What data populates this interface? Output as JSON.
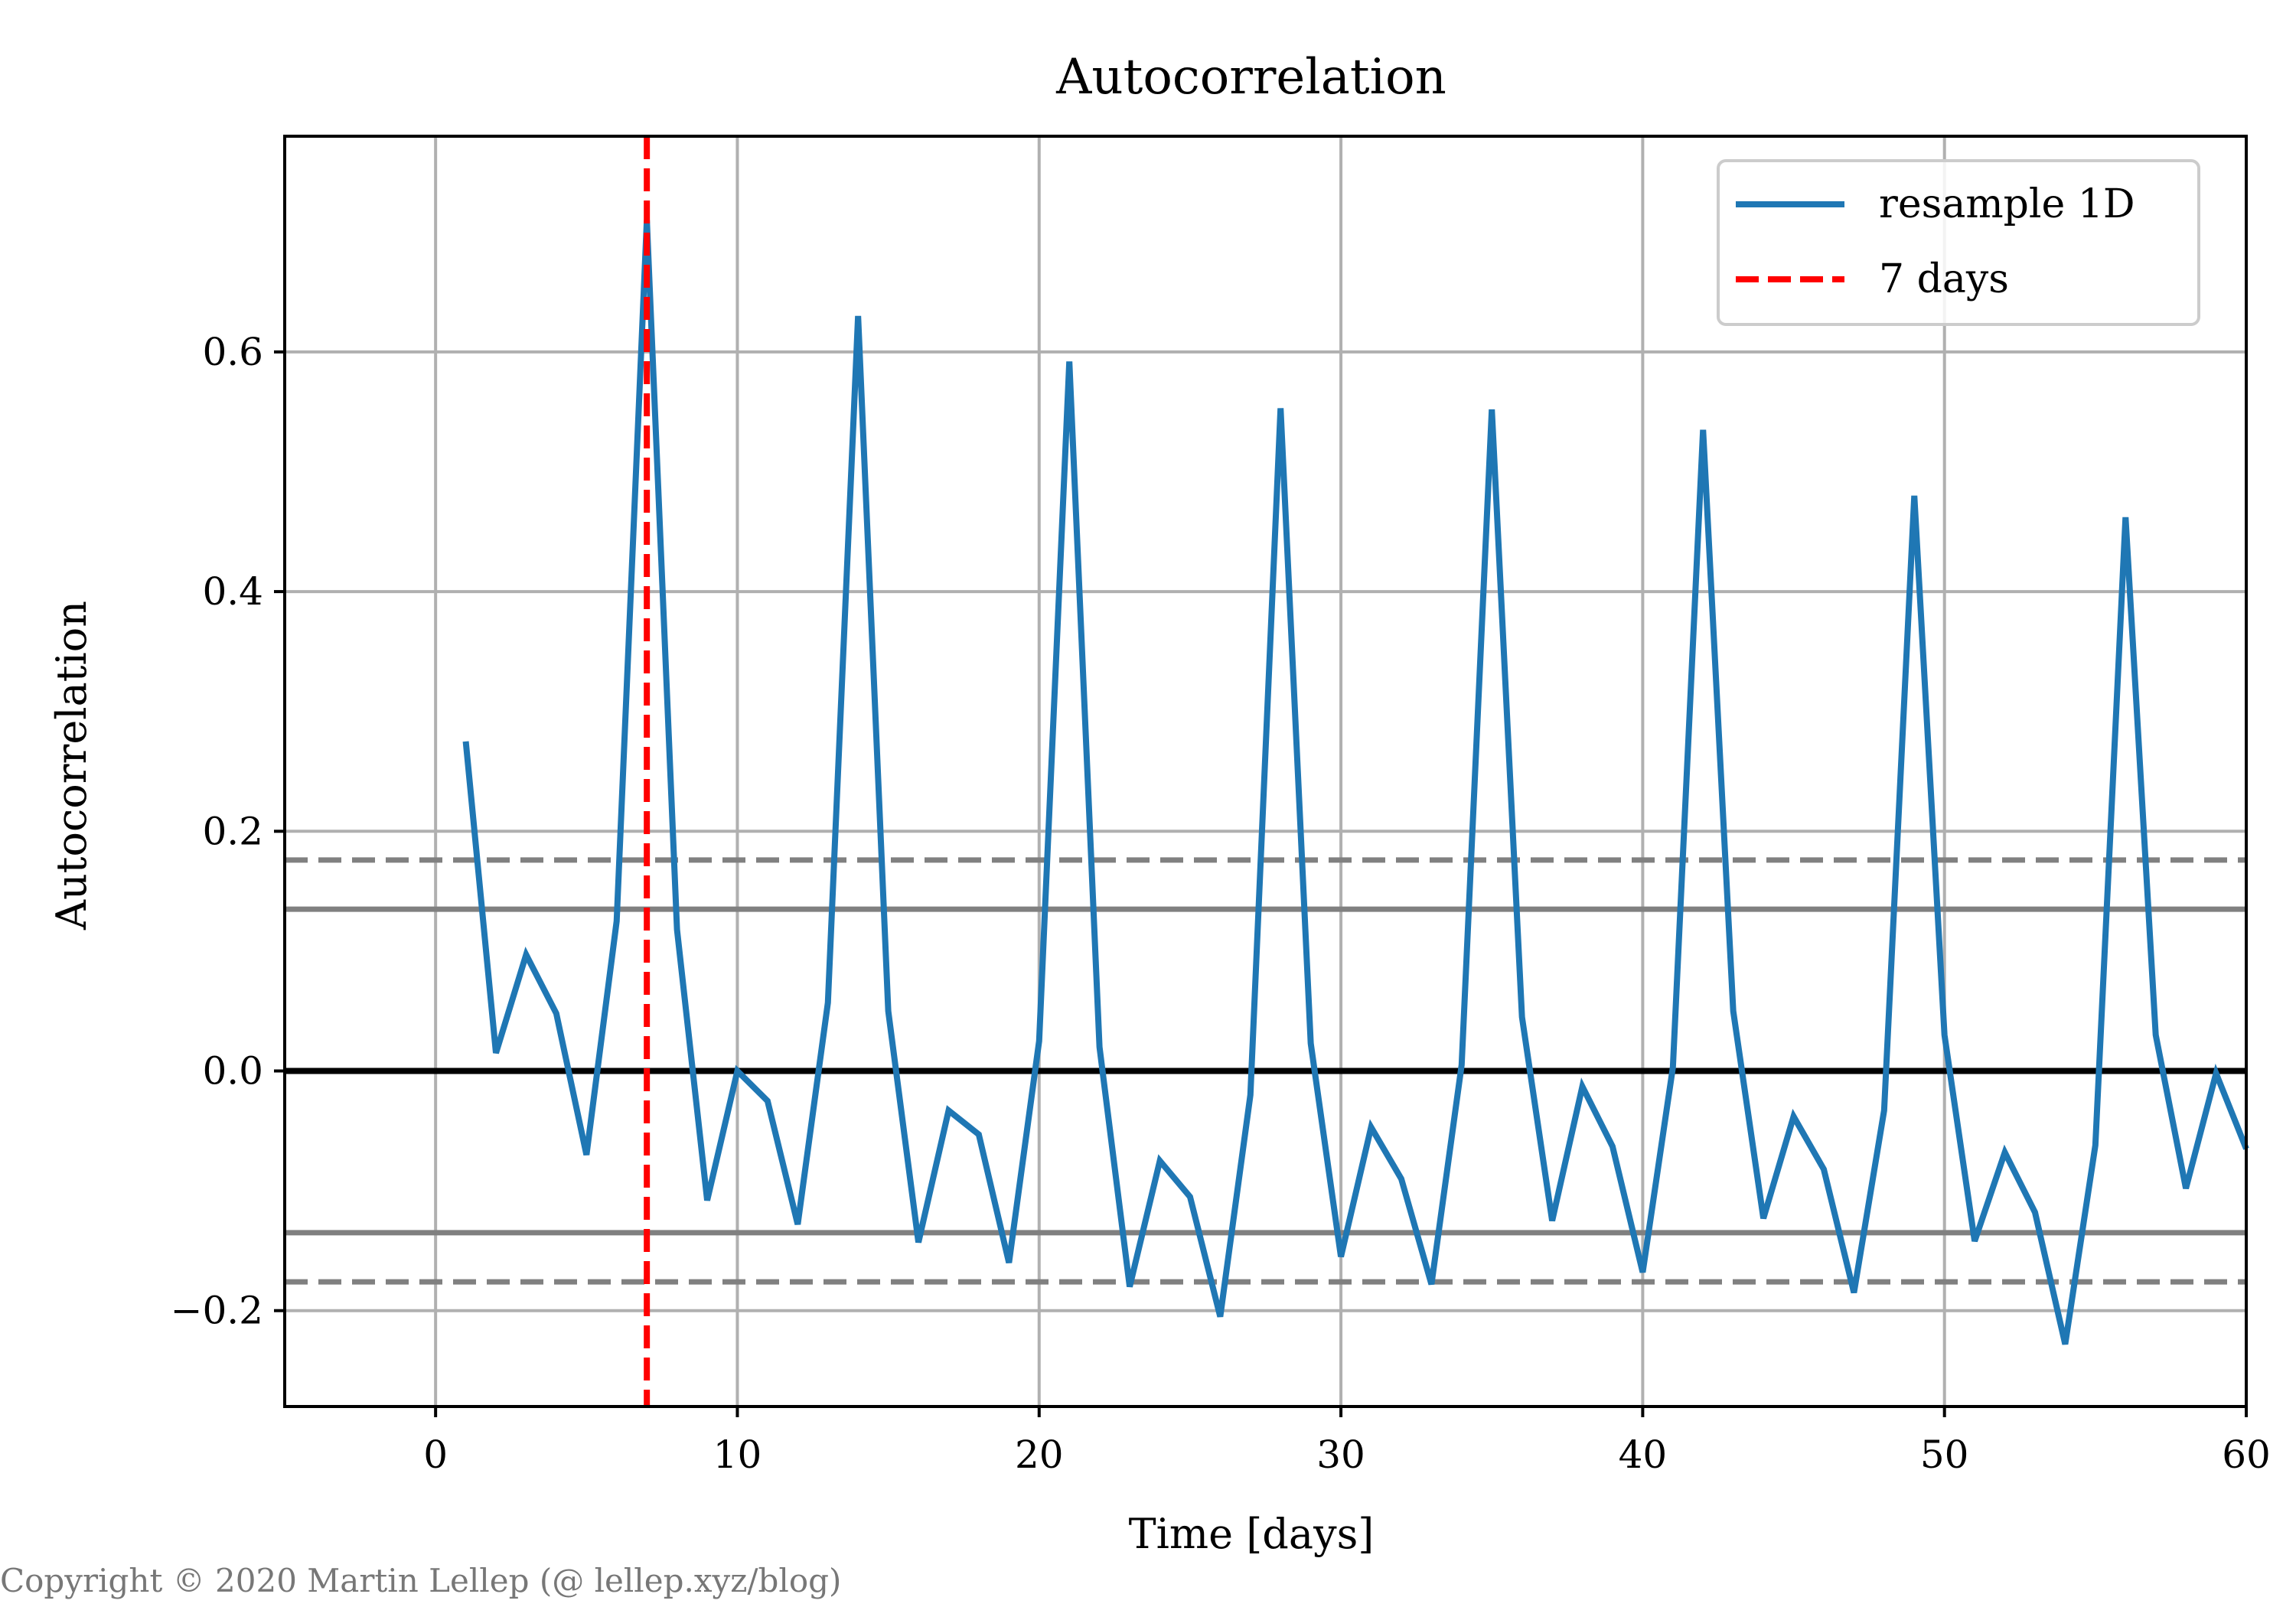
{
  "chart_data": {
    "type": "line",
    "title": "Autocorrelation",
    "xlabel": "Time [days]",
    "ylabel": "Autocorrelation",
    "xlim": [
      -5,
      60
    ],
    "ylim": [
      -0.28,
      0.78
    ],
    "xticks": [
      0,
      10,
      20,
      30,
      40,
      50,
      60
    ],
    "yticks": [
      -0.2,
      0.0,
      0.2,
      0.4,
      0.6
    ],
    "ytick_labels": [
      "−0.2",
      "0.0",
      "0.2",
      "0.4",
      "0.6"
    ],
    "grid": true,
    "legend_position": "top-right",
    "series": [
      {
        "name": "resample 1D",
        "color": "#1f77b4",
        "x": [
          1,
          2,
          3,
          4,
          5,
          6,
          7,
          8,
          9,
          10,
          11,
          12,
          13,
          14,
          15,
          16,
          17,
          18,
          19,
          20,
          21,
          22,
          23,
          24,
          25,
          26,
          27,
          28,
          29,
          30,
          31,
          32,
          33,
          34,
          35,
          36,
          37,
          38,
          39,
          40,
          41,
          42,
          43,
          44,
          45,
          46,
          47,
          48,
          49,
          50,
          51,
          52,
          53,
          54,
          55,
          56,
          57,
          58,
          59,
          60
        ],
        "y": [
          0.275,
          0.015,
          0.097,
          0.048,
          -0.07,
          0.125,
          0.71,
          0.118,
          -0.108,
          0.0,
          -0.025,
          -0.128,
          0.057,
          0.63,
          0.05,
          -0.143,
          -0.033,
          -0.053,
          -0.16,
          0.025,
          0.592,
          0.02,
          -0.18,
          -0.075,
          -0.105,
          -0.205,
          -0.02,
          0.553,
          0.023,
          -0.155,
          -0.047,
          -0.09,
          -0.178,
          0.005,
          0.552,
          0.045,
          -0.125,
          -0.013,
          -0.063,
          -0.168,
          0.003,
          0.535,
          0.05,
          -0.123,
          -0.038,
          -0.082,
          -0.185,
          -0.033,
          0.48,
          0.03,
          -0.142,
          -0.068,
          -0.118,
          -0.228,
          -0.062,
          0.462,
          0.03,
          -0.098,
          -0.002,
          -0.065
        ]
      }
    ],
    "reference_lines": [
      {
        "name": "7 days",
        "orientation": "vertical",
        "x": 7,
        "color": "#ff0000",
        "style": "dashed"
      },
      {
        "orientation": "horizontal",
        "y": 0.0,
        "color": "#000000",
        "style": "solid"
      },
      {
        "orientation": "horizontal",
        "y": 0.135,
        "color": "#808080",
        "style": "solid"
      },
      {
        "orientation": "horizontal",
        "y": -0.135,
        "color": "#808080",
        "style": "solid"
      },
      {
        "orientation": "horizontal",
        "y": 0.176,
        "color": "#808080",
        "style": "dashed"
      },
      {
        "orientation": "horizontal",
        "y": -0.176,
        "color": "#808080",
        "style": "dashed"
      }
    ]
  },
  "legend": {
    "items": [
      {
        "label": "resample 1D",
        "color": "#1f77b4",
        "style": "solid"
      },
      {
        "label": "7 days",
        "color": "#ff0000",
        "style": "dashed"
      }
    ]
  },
  "footer": {
    "copyright": "Copyright © 2020 Martin Lellep (@ lellep.xyz/blog)"
  }
}
